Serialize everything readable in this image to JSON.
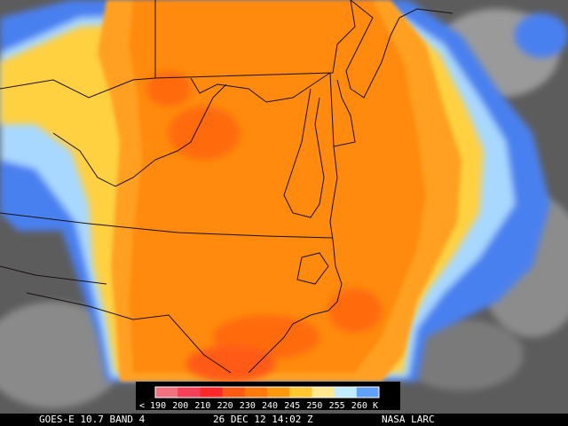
{
  "caption": {
    "satellite": "GOES-E 10.7 BAND 4",
    "datetime": "26 DEC 12 14:02 Z",
    "credit": "NASA LARC"
  },
  "legend": {
    "unit": "K",
    "ticks": [
      "< 190",
      "200",
      "210",
      "220",
      "230",
      "240",
      "245",
      "250",
      "255",
      "260"
    ],
    "colors": [
      "#f07080",
      "#f5405a",
      "#ff2828",
      "#ff5a14",
      "#ff7a0a",
      "#ff9a10",
      "#ffc830",
      "#ffe890",
      "#c0ecff",
      "#60a0ff"
    ]
  },
  "palette": {
    "gray_dark": "#505050",
    "gray_light": "#9a9a9a",
    "blue": "#4a80f0",
    "light_blue": "#a8d8ff",
    "yellow": "#ffd040",
    "orange_light": "#ffa020",
    "orange": "#ff8a10",
    "orange_deep": "#ff6a10",
    "border": "#1a1010"
  }
}
